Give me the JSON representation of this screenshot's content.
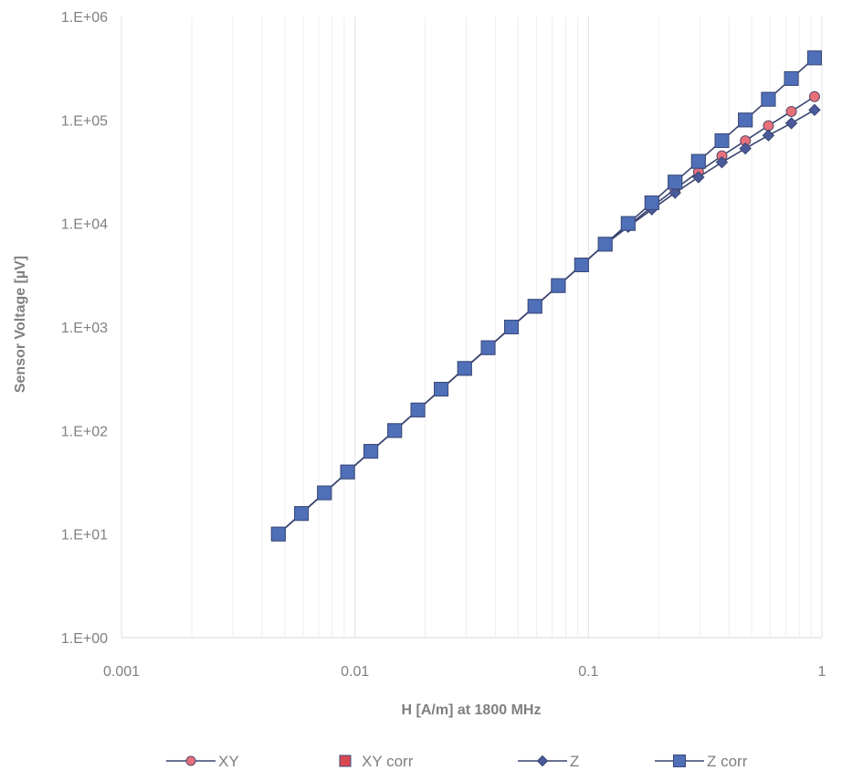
{
  "chart_data": {
    "type": "line",
    "xlabel": "H [A/m] at 1800 MHz",
    "ylabel": "Sensor Voltage [µV]",
    "xscale": "log",
    "yscale": "log",
    "xlim": [
      0.001,
      1
    ],
    "ylim": [
      1,
      1000000
    ],
    "x_tick_labels": [
      "0.001",
      "0.01",
      "0.1",
      "1"
    ],
    "y_tick_labels": [
      "1.E+00",
      "1.E+01",
      "1.E+02",
      "1.E+03",
      "1.E+04",
      "1.E+05",
      "1.E+06"
    ],
    "grid": "vertical",
    "legend_position": "bottom",
    "x": [
      0.0047,
      0.0059,
      0.0074,
      0.0093,
      0.0117,
      0.0148,
      0.0186,
      0.0234,
      0.0295,
      0.0372,
      0.0468,
      0.059,
      0.0743,
      0.0935,
      0.118,
      0.148,
      0.187,
      0.235,
      0.296,
      0.373,
      0.47,
      0.59,
      0.74,
      0.93
    ],
    "series": [
      {
        "name": "XY",
        "color": "#e8707a",
        "marker": "circle",
        "values": [
          10,
          15.8,
          25,
          39.8,
          63,
          100,
          158,
          251,
          398,
          631,
          1000,
          1585,
          2512,
          3981,
          6310,
          9500,
          14500,
          21500,
          31500,
          45000,
          63000,
          88000,
          121000,
          168000
        ]
      },
      {
        "name": "XY corr",
        "color": "#d94850",
        "marker": "square",
        "values": [
          10,
          15.8,
          25,
          39.8,
          63,
          100,
          158,
          251,
          398,
          631,
          1000,
          1585,
          2512,
          3981,
          6310,
          10000,
          15850,
          25120,
          39810,
          63100,
          100000,
          158500,
          251200,
          398100
        ]
      },
      {
        "name": "Z",
        "color": "#4a5a9a",
        "marker": "diamond",
        "values": [
          10,
          15.8,
          25,
          39.8,
          63,
          100,
          158,
          251,
          398,
          631,
          1000,
          1585,
          2512,
          3981,
          6310,
          9300,
          13700,
          19800,
          28000,
          39000,
          53000,
          71000,
          93000,
          125000
        ]
      },
      {
        "name": "Z corr",
        "color": "#4f6fb8",
        "marker": "square",
        "values": [
          10,
          15.8,
          25,
          39.8,
          63,
          100,
          158,
          251,
          398,
          631,
          1000,
          1585,
          2512,
          3981,
          6310,
          10000,
          15850,
          25120,
          39810,
          63100,
          100000,
          158500,
          251200,
          398100
        ]
      }
    ]
  }
}
